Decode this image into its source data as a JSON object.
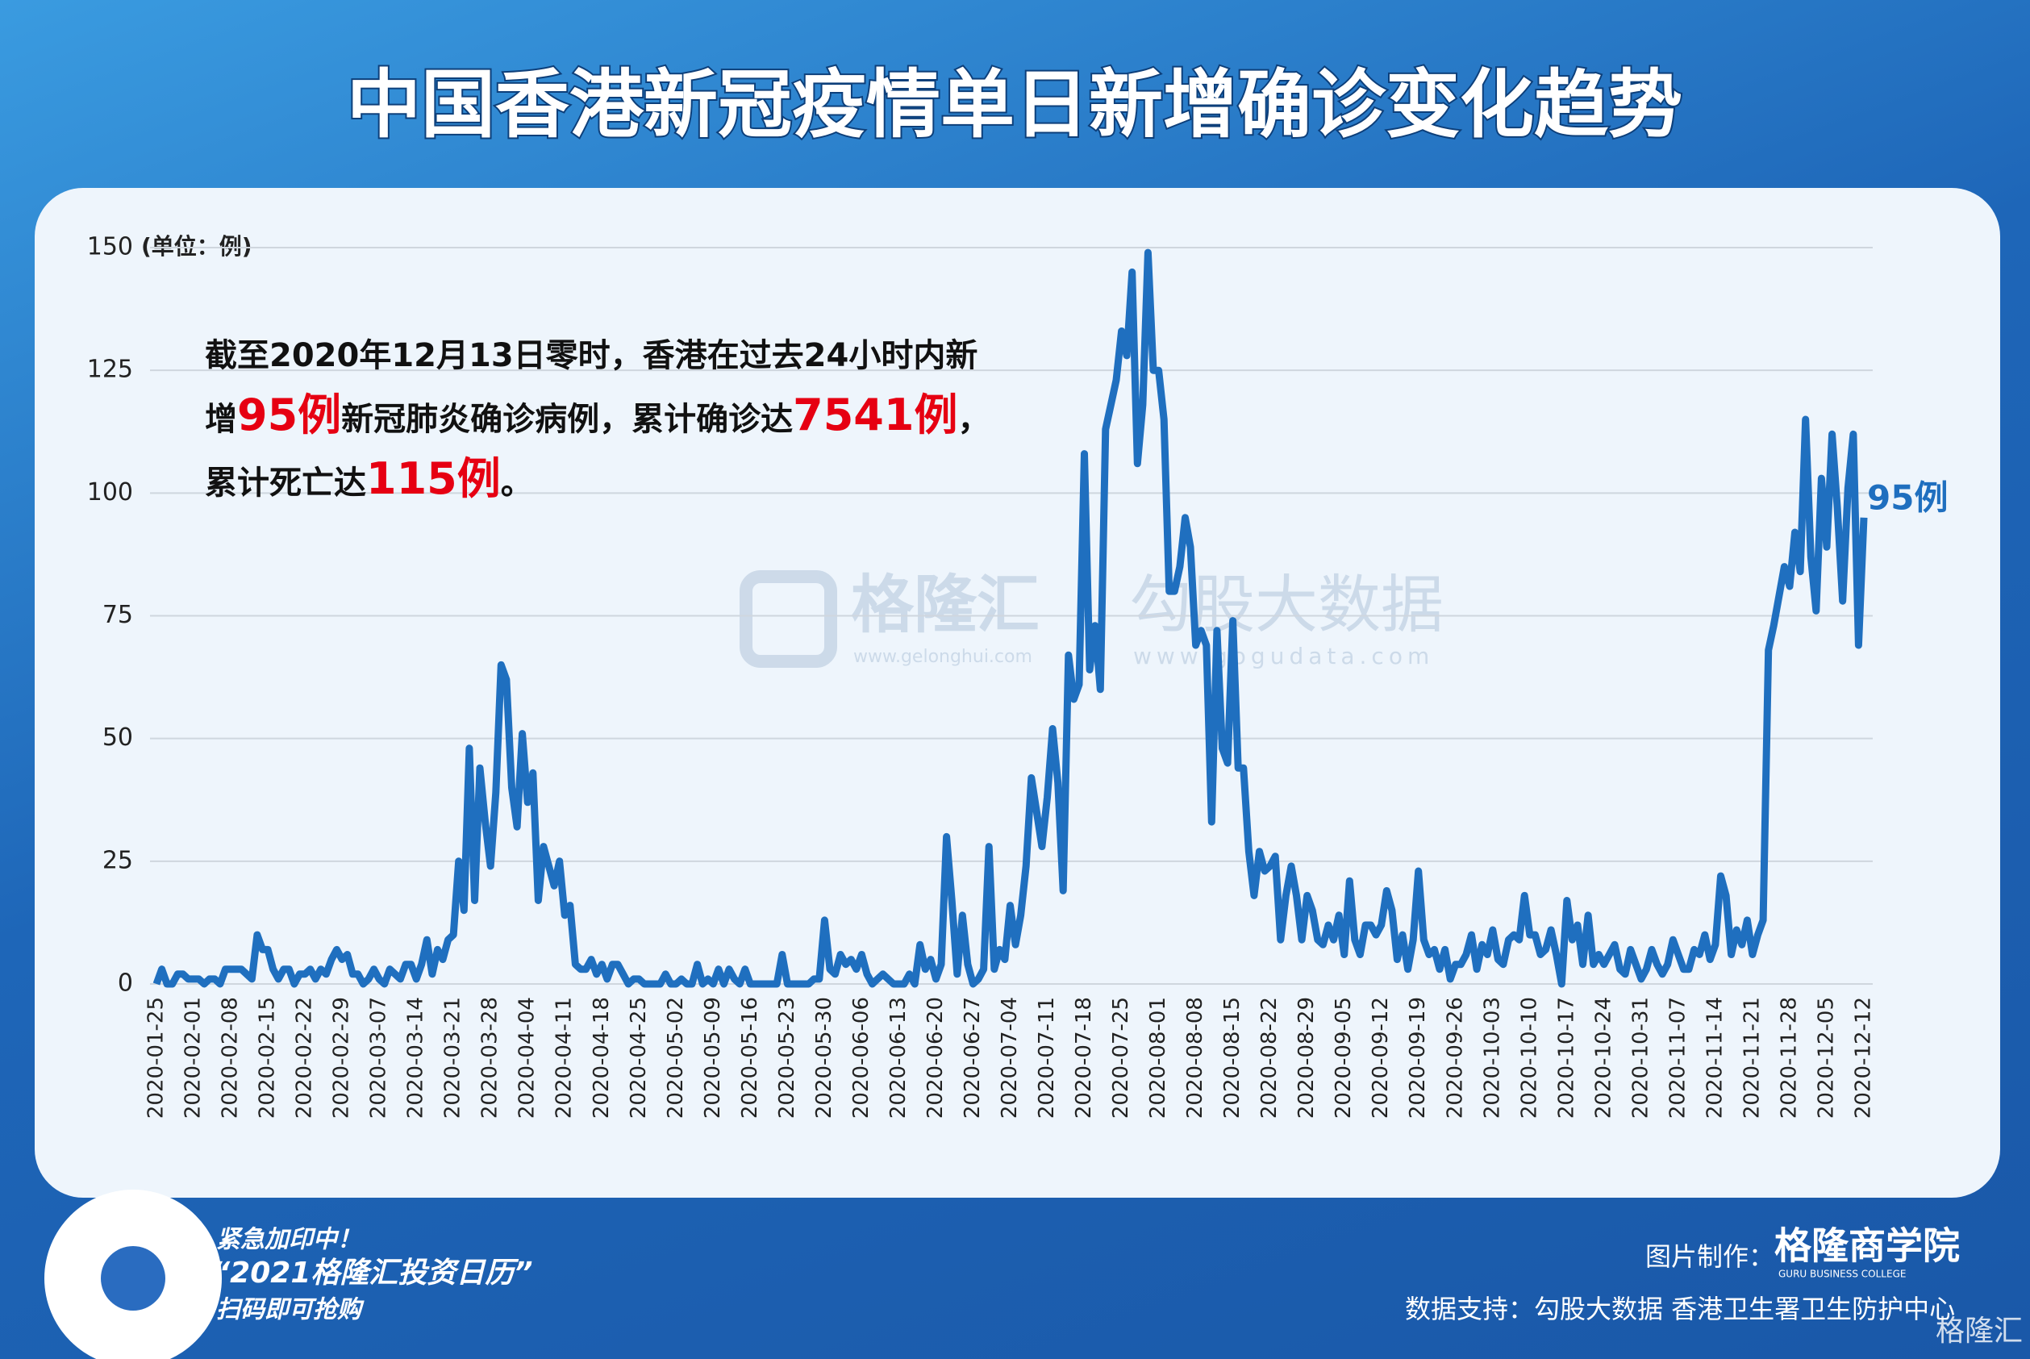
{
  "chart_data": {
    "type": "line",
    "title": "中国香港新冠疫情单日新增确诊变化趋势",
    "y_unit": "(单位：例)",
    "categories": [
      "2020-01-25",
      null,
      null,
      null,
      null,
      null,
      null,
      "2020-02-01",
      null,
      null,
      null,
      null,
      null,
      null,
      "2020-02-08",
      null,
      null,
      null,
      null,
      null,
      null,
      "2020-02-15",
      null,
      null,
      null,
      null,
      null,
      null,
      "2020-02-22",
      null,
      null,
      null,
      null,
      null,
      null,
      "2020-02-29",
      null,
      null,
      null,
      null,
      null,
      null,
      "2020-03-07",
      null,
      null,
      null,
      null,
      null,
      null,
      "2020-03-14",
      null,
      null,
      null,
      null,
      null,
      null,
      "2020-03-21",
      null,
      null,
      null,
      null,
      null,
      null,
      "2020-03-28",
      null,
      null,
      null,
      null,
      null,
      null,
      "2020-04-04",
      null,
      null,
      null,
      null,
      null,
      null,
      "2020-04-11",
      null,
      null,
      null,
      null,
      null,
      null,
      "2020-04-18",
      null,
      null,
      null,
      null,
      null,
      null,
      "2020-04-25",
      null,
      null,
      null,
      null,
      null,
      null,
      "2020-05-02",
      null,
      null,
      null,
      null,
      null,
      null,
      "2020-05-09",
      null,
      null,
      null,
      null,
      null,
      null,
      "2020-05-16",
      null,
      null,
      null,
      null,
      null,
      null,
      "2020-05-23",
      null,
      null,
      null,
      null,
      null,
      null,
      "2020-05-30",
      null,
      null,
      null,
      null,
      null,
      null,
      "2020-06-06",
      null,
      null,
      null,
      null,
      null,
      null,
      "2020-06-13",
      null,
      null,
      null,
      null,
      null,
      null,
      "2020-06-20",
      null,
      null,
      null,
      null,
      null,
      null,
      "2020-06-27",
      null,
      null,
      null,
      null,
      null,
      null,
      "2020-07-04",
      null,
      null,
      null,
      null,
      null,
      null,
      "2020-07-11",
      null,
      null,
      null,
      null,
      null,
      null,
      "2020-07-18",
      null,
      null,
      null,
      null,
      null,
      null,
      "2020-07-25",
      null,
      null,
      null,
      null,
      null,
      null,
      "2020-08-01",
      null,
      null,
      null,
      null,
      null,
      null,
      "2020-08-08",
      null,
      null,
      null,
      null,
      null,
      null,
      "2020-08-15",
      null,
      null,
      null,
      null,
      null,
      null,
      "2020-08-22",
      null,
      null,
      null,
      null,
      null,
      null,
      "2020-08-29",
      null,
      null,
      null,
      null,
      null,
      null,
      "2020-09-05",
      null,
      null,
      null,
      null,
      null,
      null,
      "2020-09-12",
      null,
      null,
      null,
      null,
      null,
      null,
      "2020-09-19",
      null,
      null,
      null,
      null,
      null,
      null,
      "2020-09-26",
      null,
      null,
      null,
      null,
      null,
      null,
      "2020-10-03",
      null,
      null,
      null,
      null,
      null,
      null,
      "2020-10-10",
      null,
      null,
      null,
      null,
      null,
      null,
      "2020-10-17",
      null,
      null,
      null,
      null,
      null,
      null,
      "2020-10-24",
      null,
      null,
      null,
      null,
      null,
      null,
      "2020-10-31",
      null,
      null,
      null,
      null,
      null,
      null,
      "2020-11-07",
      null,
      null,
      null,
      null,
      null,
      null,
      "2020-11-14",
      null,
      null,
      null,
      null,
      null,
      null,
      "2020-11-21",
      null,
      null,
      null,
      null,
      null,
      null,
      "2020-11-28",
      null,
      null,
      null,
      null,
      null,
      null,
      "2020-12-05",
      null,
      null,
      null,
      null,
      null,
      null,
      "2020-12-12"
    ],
    "values": [
      0,
      3,
      0,
      0,
      2,
      2,
      1,
      1,
      1,
      0,
      1,
      1,
      0,
      3,
      3,
      3,
      3,
      2,
      1,
      10,
      7,
      7,
      3,
      1,
      3,
      3,
      0,
      2,
      2,
      3,
      1,
      3,
      2,
      5,
      7,
      5,
      6,
      2,
      2,
      0,
      1,
      3,
      1,
      0,
      3,
      2,
      1,
      4,
      4,
      1,
      4,
      9,
      2,
      7,
      5,
      9,
      10,
      25,
      15,
      48,
      17,
      44,
      33,
      24,
      39,
      65,
      62,
      40,
      32,
      51,
      37,
      43,
      17,
      28,
      24,
      20,
      25,
      14,
      16,
      4,
      3,
      3,
      5,
      2,
      4,
      1,
      4,
      4,
      2,
      0,
      1,
      1,
      0,
      0,
      0,
      0,
      2,
      0,
      0,
      1,
      0,
      0,
      4,
      0,
      1,
      0,
      3,
      0,
      3,
      1,
      0,
      3,
      0,
      0,
      0,
      0,
      0,
      0,
      6,
      0,
      0,
      0,
      0,
      0,
      1,
      1,
      13,
      3,
      2,
      6,
      4,
      5,
      3,
      6,
      2,
      0,
      1,
      2,
      1,
      0,
      0,
      0,
      2,
      0,
      8,
      3,
      5,
      1,
      4,
      30,
      17,
      2,
      14,
      4,
      0,
      1,
      3,
      28,
      3,
      7,
      5,
      16,
      8,
      14,
      24,
      42,
      35,
      28,
      38,
      52,
      41,
      19,
      67,
      58,
      61,
      108,
      64,
      73,
      60,
      113,
      118,
      123,
      133,
      128,
      145,
      106,
      118,
      149,
      125,
      125,
      115,
      80,
      80,
      85,
      95,
      89,
      69,
      72,
      69,
      33,
      72,
      48,
      45,
      74,
      44,
      44,
      27,
      18,
      27,
      23,
      24,
      26,
      9,
      18,
      24,
      18,
      9,
      18,
      15,
      9,
      8,
      12,
      9,
      14,
      6,
      21,
      9,
      6,
      12,
      12,
      10,
      12,
      19,
      15,
      5,
      10,
      3,
      9,
      23,
      9,
      6,
      7,
      3,
      7,
      1,
      4,
      4,
      6,
      10,
      3,
      8,
      6,
      11,
      5,
      4,
      9,
      10,
      9,
      18,
      10,
      10,
      6,
      7,
      11,
      6,
      0,
      17,
      9,
      12,
      4,
      14,
      4,
      6,
      4,
      6,
      8,
      3,
      2,
      7,
      4,
      1,
      3,
      7,
      4,
      2,
      4,
      9,
      6,
      3,
      3,
      7,
      6,
      10,
      5,
      8,
      22,
      18,
      6,
      11,
      8,
      13,
      6,
      10,
      13,
      68,
      73,
      79,
      85,
      81,
      92,
      84,
      115,
      87,
      76,
      103,
      89,
      112,
      97,
      78,
      101,
      112,
      69,
      95
    ],
    "last_value_label": "95例",
    "color": "#1f6fbf",
    "ylim": [
      0,
      150
    ],
    "yticks": [
      0,
      25,
      50,
      75,
      100,
      125,
      150
    ],
    "grid": true,
    "note_lines": [
      [
        {
          "text": "截至2020年12月13日零时，香港在过去24小时内新",
          "highlight": false
        }
      ],
      [
        {
          "text": "增",
          "highlight": false
        },
        {
          "text": "95例",
          "highlight": true
        },
        {
          "text": "新冠肺炎确诊病例，累计确诊达",
          "highlight": false
        },
        {
          "text": "7541例",
          "highlight": true
        },
        {
          "text": "，",
          "highlight": false
        }
      ],
      [
        {
          "text": "累计死亡达",
          "highlight": false
        },
        {
          "text": "115例",
          "highlight": true
        },
        {
          "text": "。",
          "highlight": false
        }
      ]
    ]
  },
  "watermarks": {
    "brand1": "格隆汇",
    "url1": "www.gelonghui.com",
    "brand2": "勾股大数据",
    "url2": "www.gogudata.com"
  },
  "footer": {
    "promo1": "紧急加印中！",
    "promo2": "“2021格隆汇投资日历”",
    "promo3": "扫码即可抢购",
    "made_by": "图片制作：",
    "college": "格隆商学院",
    "college_en": "GURU BUSINESS COLLEGE",
    "source": "数据支持：勾股大数据 香港卫生署卫生防护中心",
    "logo": "格隆汇"
  }
}
